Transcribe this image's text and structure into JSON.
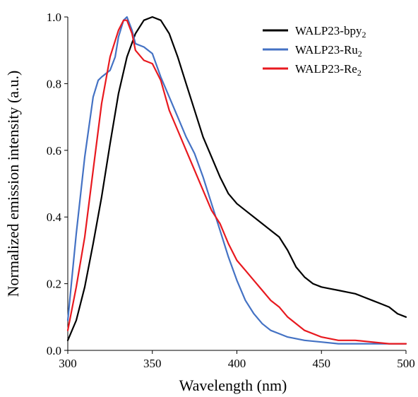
{
  "chart_data": {
    "type": "line",
    "title": "",
    "xlabel": "Wavelength (nm)",
    "ylabel": "Normalized emission intensity (a.u.)",
    "xlim": [
      300,
      500
    ],
    "ylim": [
      0.0,
      1.0
    ],
    "xticks": [
      "300",
      "350",
      "400",
      "450",
      "500"
    ],
    "yticks": [
      "0.0",
      "0.2",
      "0.4",
      "0.6",
      "0.8",
      "1.0"
    ],
    "grid": false,
    "legend_position": "top-right",
    "series": [
      {
        "name": "WALP23-bpy",
        "name_sub": "2",
        "color": "#000000",
        "x": [
          300,
          305,
          310,
          315,
          320,
          325,
          330,
          335,
          340,
          345,
          350,
          355,
          360,
          365,
          370,
          375,
          380,
          385,
          390,
          395,
          400,
          405,
          410,
          415,
          420,
          425,
          430,
          435,
          440,
          445,
          450,
          455,
          460,
          465,
          470,
          475,
          480,
          485,
          490,
          495,
          500
        ],
        "y": [
          0.03,
          0.09,
          0.19,
          0.32,
          0.46,
          0.62,
          0.77,
          0.88,
          0.95,
          0.99,
          1.0,
          0.99,
          0.95,
          0.88,
          0.8,
          0.72,
          0.64,
          0.58,
          0.52,
          0.47,
          0.44,
          0.42,
          0.4,
          0.38,
          0.36,
          0.34,
          0.3,
          0.25,
          0.22,
          0.2,
          0.19,
          0.185,
          0.18,
          0.175,
          0.17,
          0.16,
          0.15,
          0.14,
          0.13,
          0.11,
          0.1
        ]
      },
      {
        "name": "WALP23-Ru",
        "name_sub": "2",
        "color": "#4472C4",
        "x": [
          300,
          305,
          310,
          315,
          318,
          320,
          325,
          328,
          330,
          333,
          335,
          338,
          340,
          345,
          350,
          355,
          360,
          365,
          370,
          375,
          380,
          385,
          390,
          395,
          400,
          405,
          410,
          415,
          420,
          425,
          430,
          440,
          450,
          460,
          470,
          480,
          490,
          500
        ],
        "y": [
          0.09,
          0.35,
          0.58,
          0.76,
          0.81,
          0.82,
          0.84,
          0.88,
          0.94,
          0.99,
          1.0,
          0.96,
          0.92,
          0.91,
          0.89,
          0.82,
          0.76,
          0.7,
          0.64,
          0.59,
          0.52,
          0.44,
          0.36,
          0.28,
          0.21,
          0.15,
          0.11,
          0.08,
          0.06,
          0.05,
          0.04,
          0.03,
          0.025,
          0.02,
          0.02,
          0.02,
          0.02,
          0.02
        ]
      },
      {
        "name": "WALP23-Re",
        "name_sub": "2",
        "color": "#E8191F",
        "x": [
          300,
          305,
          310,
          315,
          320,
          325,
          330,
          333,
          335,
          338,
          340,
          345,
          350,
          355,
          360,
          365,
          370,
          375,
          380,
          385,
          390,
          395,
          400,
          405,
          410,
          415,
          420,
          425,
          430,
          440,
          450,
          460,
          470,
          480,
          490,
          500
        ],
        "y": [
          0.06,
          0.19,
          0.34,
          0.54,
          0.74,
          0.88,
          0.96,
          0.99,
          0.99,
          0.95,
          0.9,
          0.87,
          0.86,
          0.81,
          0.72,
          0.66,
          0.6,
          0.54,
          0.48,
          0.42,
          0.38,
          0.32,
          0.27,
          0.24,
          0.21,
          0.18,
          0.15,
          0.13,
          0.1,
          0.06,
          0.04,
          0.03,
          0.03,
          0.025,
          0.02,
          0.02
        ]
      }
    ]
  }
}
